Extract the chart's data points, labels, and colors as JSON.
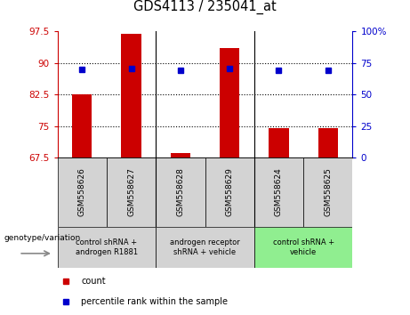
{
  "title": "GDS4113 / 235041_at",
  "samples": [
    "GSM558626",
    "GSM558627",
    "GSM558628",
    "GSM558629",
    "GSM558624",
    "GSM558625"
  ],
  "red_values": [
    82.5,
    97.0,
    68.5,
    93.5,
    74.5,
    74.5
  ],
  "blue_values": [
    88.5,
    88.7,
    88.2,
    88.7,
    88.2,
    88.2
  ],
  "ylim_left": [
    67.5,
    97.5
  ],
  "ylim_right": [
    0,
    100
  ],
  "yticks_left": [
    67.5,
    75.0,
    82.5,
    90.0,
    97.5
  ],
  "yticks_right": [
    0,
    25,
    50,
    75,
    100
  ],
  "ytick_labels_left": [
    "67.5",
    "75",
    "82.5",
    "90",
    "97.5"
  ],
  "ytick_labels_right": [
    "0",
    "25",
    "50",
    "75",
    "100%"
  ],
  "groups": [
    {
      "label": "control shRNA +\nandrogen R1881",
      "samples_idx": [
        0,
        1
      ],
      "color": "#d3d3d3"
    },
    {
      "label": "androgen receptor\nshRNA + vehicle",
      "samples_idx": [
        2,
        3
      ],
      "color": "#d3d3d3"
    },
    {
      "label": "control shRNA +\nvehicle",
      "samples_idx": [
        4,
        5
      ],
      "color": "#90ee90"
    }
  ],
  "bar_color": "#cc0000",
  "marker_color": "#0000cc",
  "bar_width": 0.4,
  "base_value": 67.5,
  "legend_count_color": "#cc0000",
  "legend_pct_color": "#0000cc"
}
